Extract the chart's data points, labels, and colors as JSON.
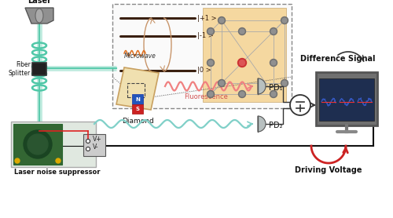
{
  "bg_color": "#ffffff",
  "laser_label": "Laser",
  "fiber_splitter_label": "Fiber\nSplitter",
  "diamond_label": "Diamond",
  "fluorescence_label": "Fluorescence",
  "laser_noise_label": "Laser noise suppressor",
  "pd1_label": "PD₁",
  "pd2_label": "PD₂",
  "diff_signal_label": "Difference Signal",
  "driving_voltage_label": "Driving Voltage",
  "microwave_label": "Microwave",
  "level_p1_label": "|+1 >",
  "level_m1_label": "|-1 >",
  "level_0_label": "|0 >",
  "vplus_label": "V+",
  "vminus_label": "V-",
  "green_color": "#50c8a8",
  "beam_pink": "#f08080",
  "beam_teal": "#80d0c8",
  "diamond_bg": "#f0e0b0",
  "crystal_bg": "#f5d8a0",
  "dashed_box_color": "#888888",
  "orange_color": "#e07020",
  "level_color": "#3a2010",
  "monitor_frame": "#606060",
  "monitor_screen": "#1a2848",
  "node_color": "#707070",
  "nv_color": "#cc3333",
  "magnet_n": "#2255bb",
  "magnet_s": "#cc2222"
}
